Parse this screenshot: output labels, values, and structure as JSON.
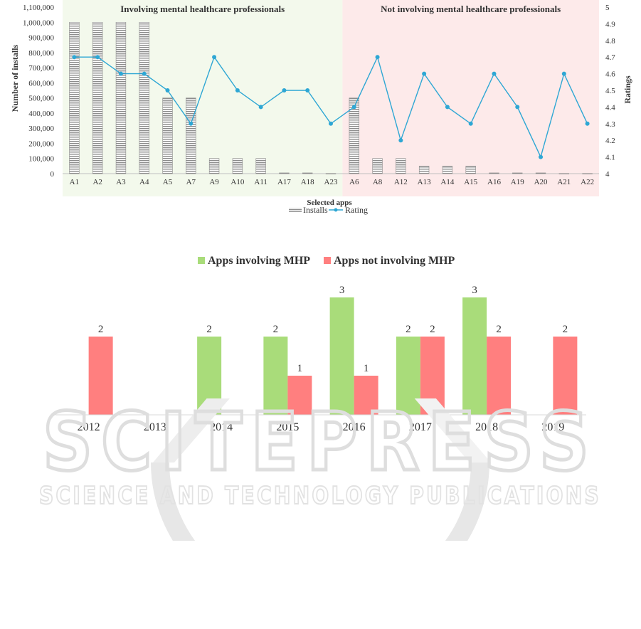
{
  "watermark": {
    "line1": "SCITEPRESS",
    "line2": "SCIENCE AND TECHNOLOGY PUBLICATIONS"
  },
  "chart_data": [
    {
      "type": "bar+line",
      "title": "",
      "xlabel": "Selected apps",
      "ylabel": "Number of installs",
      "y2label": "Ratings",
      "ylim": [
        0,
        1100000
      ],
      "y2lim": [
        4,
        5
      ],
      "yticks": [
        "0",
        "100,000",
        "200,000",
        "300,000",
        "400,000",
        "500,000",
        "600,000",
        "700,000",
        "800,000",
        "900,000",
        "1,000,000",
        "1,100,000"
      ],
      "y2ticks": [
        "4",
        "4.1",
        "4.2",
        "4.3",
        "4.4",
        "4.5",
        "4.6",
        "4.7",
        "4.8",
        "4.9",
        "5"
      ],
      "regions": [
        {
          "label": "Involving mental healthcare professionals",
          "from": 0,
          "to": 11,
          "color": "#f3f9ec"
        },
        {
          "label": "Not involving mental healthcare professionals",
          "from": 12,
          "to": 22,
          "color": "#fdeaea"
        }
      ],
      "categories": [
        "A1",
        "A2",
        "A3",
        "A4",
        "A5",
        "A7",
        "A9",
        "A10",
        "A11",
        "A17",
        "A18",
        "A23",
        "A6",
        "A8",
        "A12",
        "A13",
        "A14",
        "A15",
        "A16",
        "A19",
        "A20",
        "A21",
        "A22"
      ],
      "series": [
        {
          "name": "Installs",
          "kind": "bar",
          "values": [
            1000000,
            1000000,
            1000000,
            1000000,
            500000,
            500000,
            100000,
            100000,
            100000,
            5000,
            5000,
            1000,
            500000,
            100000,
            100000,
            50000,
            50000,
            50000,
            5000,
            5000,
            5000,
            1000,
            1000
          ]
        },
        {
          "name": "Rating",
          "kind": "line",
          "axis": "right",
          "values": [
            4.7,
            4.7,
            4.6,
            4.6,
            4.5,
            4.3,
            4.7,
            4.5,
            4.4,
            4.5,
            4.5,
            4.3,
            4.4,
            4.7,
            4.2,
            4.6,
            4.4,
            4.3,
            4.6,
            4.4,
            4.1,
            4.6,
            4.3
          ]
        }
      ],
      "colors": {
        "bars": "#8c8c8c",
        "line": "#2ea7d4"
      },
      "legend": "bottom-center"
    },
    {
      "type": "bar",
      "title": "",
      "categories": [
        "2012",
        "2013",
        "2014",
        "2015",
        "2016",
        "2017",
        "2018",
        "2019"
      ],
      "ylim": [
        0,
        3
      ],
      "series": [
        {
          "name": "Apps involving MHP",
          "color": "#a9dc7a",
          "values": [
            null,
            null,
            2,
            2,
            3,
            2,
            3,
            null
          ]
        },
        {
          "name": "Apps not involving MHP",
          "color": "#ff7f7f",
          "values": [
            2,
            null,
            null,
            1,
            1,
            2,
            2,
            2
          ]
        }
      ],
      "legend": "top-center"
    }
  ]
}
